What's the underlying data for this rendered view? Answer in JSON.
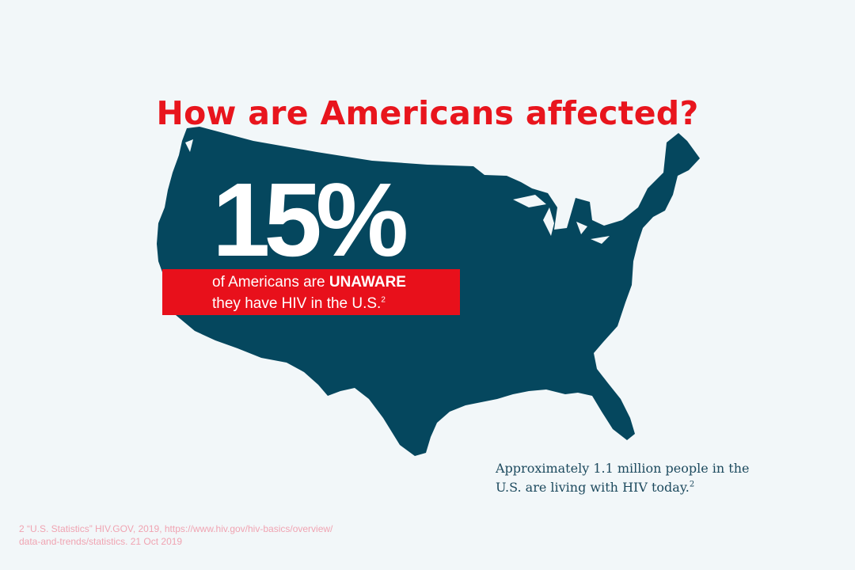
{
  "title": "How are Americans affected?",
  "stat": {
    "value": "15%",
    "line1_prefix": "of Americans are ",
    "line1_emphasis": "UNAWARE",
    "line2": "they have HIV in the U.S.",
    "line2_ref": "2"
  },
  "note": {
    "line1": "Approximately 1.1 million people in the",
    "line2": "U.S. are living with HIV today.",
    "ref": "2"
  },
  "footnote": {
    "line1": "2  “U.S. Statistics” HIV.GOV, 2019, https://www.hiv.gov/hiv-basics/overview/",
    "line2": "data-and-trends/statistics. 21 Oct 2019"
  },
  "colors": {
    "background": "#f2f7f9",
    "title": "#e8151d",
    "map": "#05475e",
    "banner": "#e8101b",
    "note_text": "#1d4a5e",
    "footnote_text": "#f0a4b2"
  }
}
